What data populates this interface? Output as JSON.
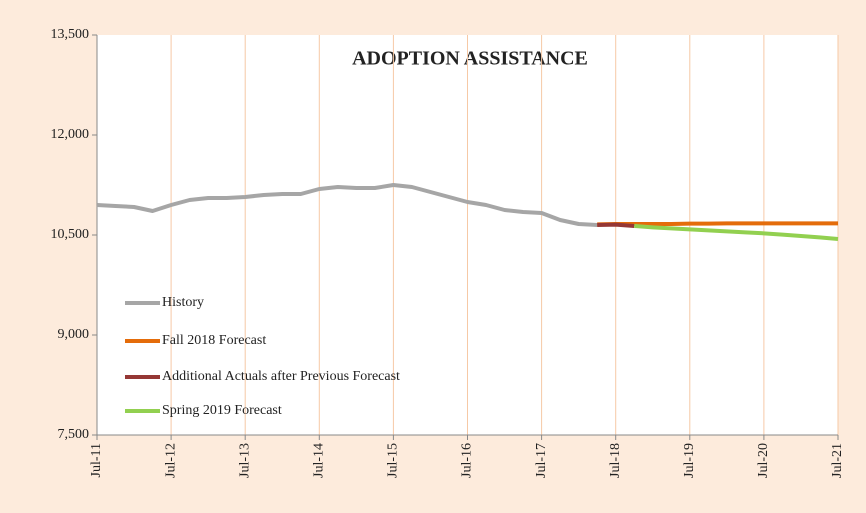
{
  "chart_data": {
    "type": "line",
    "title": "ADOPTION ASSISTANCE",
    "categories": [
      "Jul-11",
      null,
      null,
      null,
      "Jul-12",
      null,
      null,
      null,
      "Jul-13",
      null,
      null,
      null,
      "Jul-14",
      null,
      null,
      null,
      "Jul-15",
      null,
      null,
      null,
      "Jul-16",
      null,
      null,
      null,
      "Jul-17",
      null,
      null,
      null,
      "Jul-18",
      null,
      null,
      null,
      "Jul-19",
      null,
      null,
      null,
      "Jul-20",
      null,
      null,
      null,
      "Jul-21"
    ],
    "series": [
      {
        "name": "History",
        "color": "#a6a6a6",
        "values": [
          10950,
          10935,
          10920,
          10860,
          10950,
          11025,
          11055,
          11055,
          11070,
          11100,
          11115,
          11115,
          11190,
          11220,
          11205,
          11205,
          11250,
          11220,
          11145,
          11070,
          10995,
          10950,
          10875,
          10845,
          10830,
          10725,
          10665,
          10650,
          null,
          null,
          null,
          null,
          null,
          null,
          null,
          null,
          null,
          null,
          null,
          null,
          null
        ]
      },
      {
        "name": "Fall 2018 Forecast",
        "color": "#e46c0a",
        "values": [
          null,
          null,
          null,
          null,
          null,
          null,
          null,
          null,
          null,
          null,
          null,
          null,
          null,
          null,
          null,
          null,
          null,
          null,
          null,
          null,
          null,
          null,
          null,
          null,
          null,
          null,
          null,
          10660,
          10665,
          10665,
          10665,
          10665,
          10670,
          10670,
          10675,
          10675,
          10675,
          10675,
          10675,
          10675,
          10675
        ]
      },
      {
        "name": "Additional Actuals after Previous Forecast",
        "color": "#953735",
        "values": [
          null,
          null,
          null,
          null,
          null,
          null,
          null,
          null,
          null,
          null,
          null,
          null,
          null,
          null,
          null,
          null,
          null,
          null,
          null,
          null,
          null,
          null,
          null,
          null,
          null,
          null,
          null,
          10650,
          10655,
          10635,
          null,
          null,
          null,
          null,
          null,
          null,
          null,
          null,
          null,
          null,
          null
        ]
      },
      {
        "name": "Spring 2019 Forecast",
        "color": "#92d050",
        "values": [
          null,
          null,
          null,
          null,
          null,
          null,
          null,
          null,
          null,
          null,
          null,
          null,
          null,
          null,
          null,
          null,
          null,
          null,
          null,
          null,
          null,
          null,
          null,
          null,
          null,
          null,
          null,
          null,
          null,
          10635,
          10615,
          10600,
          10585,
          10570,
          10555,
          10540,
          10525,
          10505,
          10485,
          10465,
          10440
        ]
      }
    ],
    "ylim": [
      7500,
      13500
    ],
    "yticks": [
      {
        "value": 7500,
        "label": "7,500"
      },
      {
        "value": 9000,
        "label": "9,000"
      },
      {
        "value": 10500,
        "label": "10,500"
      },
      {
        "value": 12000,
        "label": "12,000"
      },
      {
        "value": 13500,
        "label": "13,500"
      }
    ],
    "grid": true
  }
}
